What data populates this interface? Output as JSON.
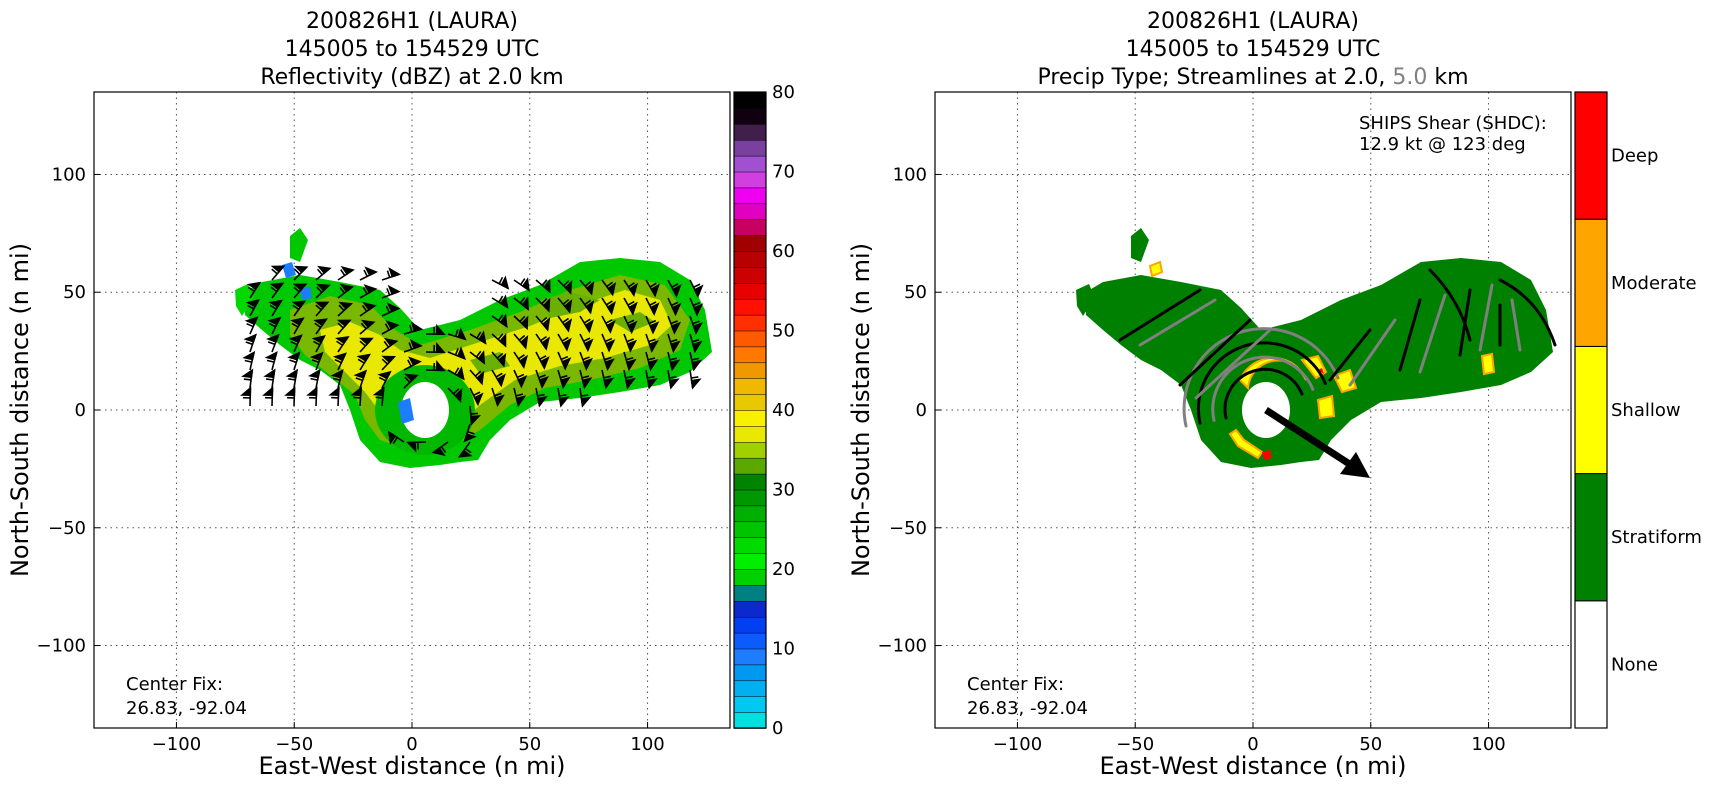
{
  "chart_data": [
    {
      "type": "heatmap",
      "title_lines": [
        "200826H1 (LAURA)",
        "145005 to 154529 UTC",
        "Reflectivity (dBZ) at 2.0 km"
      ],
      "xlabel": "East-West distance (n mi)",
      "ylabel": "North-South distance (n mi)",
      "xlim": [
        -135,
        135
      ],
      "ylim": [
        -135,
        135
      ],
      "xticks": [
        -100,
        -50,
        0,
        50,
        100
      ],
      "yticks": [
        -100,
        -50,
        0,
        50,
        100
      ],
      "grid": true,
      "annotation": {
        "line1": "Center Fix:",
        "line2": "26.83, -92.04"
      },
      "colorbar": {
        "min": 0,
        "max": 80,
        "step": 2.5,
        "ticks": [
          0,
          10,
          20,
          30,
          40,
          50,
          60,
          70,
          80
        ],
        "colors": [
          "#00e0e0",
          "#00c8f0",
          "#00b0f0",
          "#0098f0",
          "#1e7cff",
          "#0a5cff",
          "#0040f0",
          "#0a2ad0",
          "#008080",
          "#00d000",
          "#00ee00",
          "#00da00",
          "#00c400",
          "#00b000",
          "#009800",
          "#008400",
          "#5aa800",
          "#a0d000",
          "#e8e800",
          "#f8f000",
          "#e8c800",
          "#f0b800",
          "#f09800",
          "#ff7800",
          "#ff5a00",
          "#ff3000",
          "#ff1000",
          "#e80000",
          "#cc0000",
          "#b80000",
          "#a00000",
          "#c80060",
          "#e000c0",
          "#f000f0",
          "#d040e0",
          "#a050d0",
          "#7a40a0",
          "#40204a",
          "#100010",
          "#000000"
        ]
      },
      "series": [
        {
          "name": "",
          "description_values": "reflectivity field"
        }
      ],
      "barbs": "wind barbs at 2.0 km"
    },
    {
      "type": "heatmap",
      "title_lines": [
        "200826H1 (LAURA)",
        "145005 to 154529 UTC"
      ],
      "title_line3_parts": [
        "Precip Type; Streamlines at 2.0, ",
        "5.0",
        " km"
      ],
      "xlabel": "East-West distance (n mi)",
      "ylabel": "North-South distance (n mi)",
      "xlim": [
        -135,
        135
      ],
      "ylim": [
        -135,
        135
      ],
      "xticks": [
        -100,
        -50,
        0,
        50,
        100
      ],
      "yticks": [
        -100,
        -50,
        0,
        50,
        100
      ],
      "grid": true,
      "annotation": {
        "line1": "Center Fix:",
        "line2": "26.83, -92.04"
      },
      "shear_note": {
        "line1": "SHIPS Shear (SHDC):",
        "line2": "12.9 kt @ 123 deg"
      },
      "shear_vector": {
        "magnitude_kt": 12.9,
        "direction_deg": 123,
        "start": [
          0,
          0
        ],
        "end": [
          47,
          -30
        ]
      },
      "colorbar": {
        "categories": [
          "None",
          "Stratiform",
          "Shallow",
          "Moderate",
          "Deep"
        ],
        "colors": [
          "#ffffff",
          "#008000",
          "#ffff00",
          "#ffa500",
          "#ff0000"
        ]
      },
      "streamline_colors": {
        "2.0": "#000000",
        "5.0": "#808080"
      }
    }
  ]
}
